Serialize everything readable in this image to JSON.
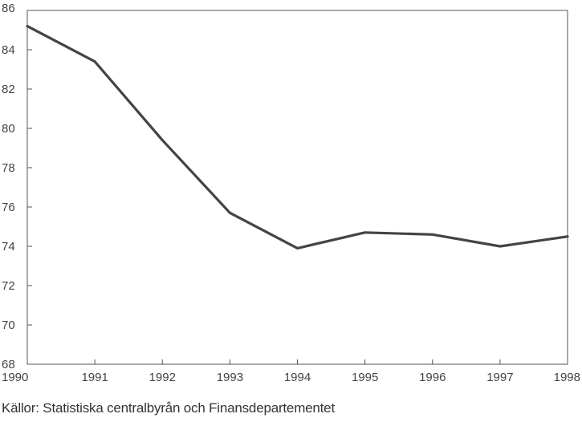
{
  "chart_data": {
    "type": "line",
    "categories": [
      "1990",
      "1991",
      "1992",
      "1993",
      "1994",
      "1995",
      "1996",
      "1997",
      "1998"
    ],
    "series": [
      {
        "values": [
          85.2,
          83.4,
          79.4,
          75.7,
          73.9,
          74.7,
          74.6,
          74.0,
          74.5
        ]
      }
    ],
    "y_ticks": [
      "68",
      "70",
      "72",
      "74",
      "76",
      "78",
      "80",
      "82",
      "84",
      "86"
    ],
    "ylim": [
      68,
      86
    ],
    "grid": false,
    "line_color": "#444444"
  },
  "source_note": "Källor: Statistiska centralbyrån och Finansdepartementet"
}
